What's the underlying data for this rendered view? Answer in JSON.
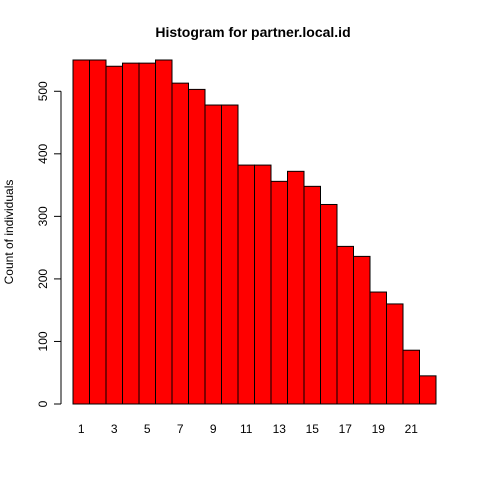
{
  "chart_data": {
    "type": "bar",
    "title": "Histogram for partner.local.id",
    "xlabel": "",
    "ylabel": "Count of individuals",
    "categories": [
      "1",
      "2",
      "3",
      "4",
      "5",
      "6",
      "7",
      "8",
      "9",
      "10",
      "11",
      "12",
      "13",
      "14",
      "15",
      "16",
      "17",
      "18",
      "19",
      "20",
      "21",
      "22"
    ],
    "values": [
      550,
      550,
      540,
      545,
      545,
      550,
      513,
      503,
      478,
      478,
      382,
      382,
      356,
      372,
      348,
      319,
      252,
      236,
      179,
      160,
      86,
      45
    ],
    "x_tick_labels": [
      "1",
      "3",
      "5",
      "7",
      "9",
      "11",
      "13",
      "15",
      "17",
      "19",
      "21"
    ],
    "y_ticks": [
      0,
      100,
      200,
      300,
      400,
      500
    ],
    "ylim": [
      0,
      550
    ],
    "bar_color": "#ff0000",
    "grid": false,
    "legend": "none"
  }
}
